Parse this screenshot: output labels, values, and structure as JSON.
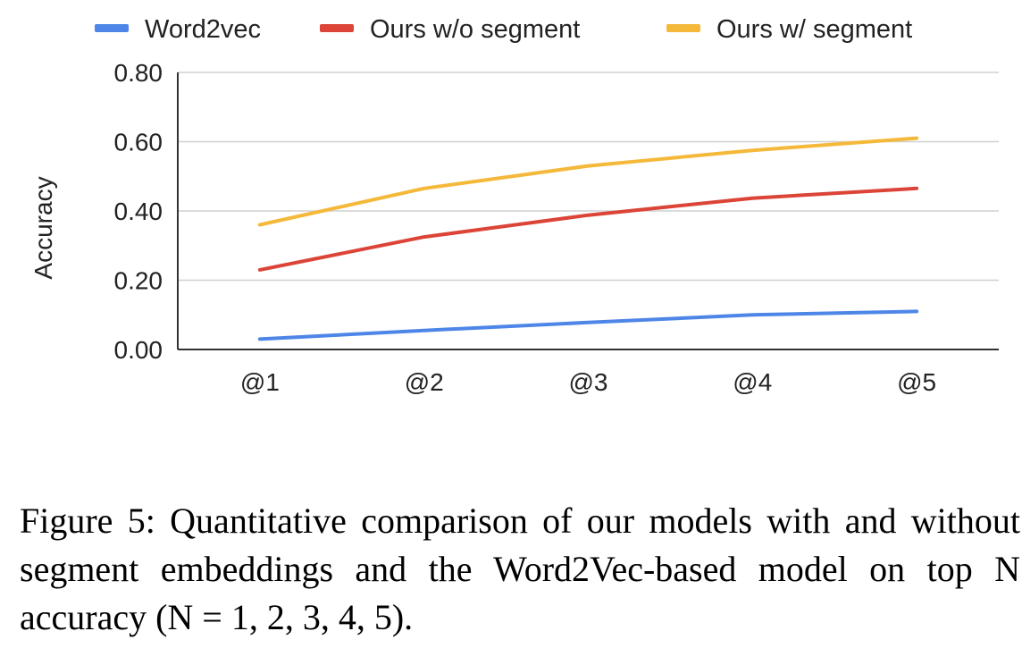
{
  "chart_data": {
    "type": "line",
    "categories": [
      "@1",
      "@2",
      "@3",
      "@4",
      "@5"
    ],
    "series": [
      {
        "name": "Word2vec",
        "color": "#4e86e8",
        "values": [
          0.03,
          0.055,
          0.078,
          0.1,
          0.11
        ]
      },
      {
        "name": "Ours w/o segment",
        "color": "#db4437",
        "values": [
          0.23,
          0.325,
          0.388,
          0.437,
          0.465
        ]
      },
      {
        "name": "Ours w/ segment",
        "color": "#f4b93a",
        "values": [
          0.36,
          0.465,
          0.53,
          0.575,
          0.61
        ]
      }
    ],
    "ylabel": "Accuracy",
    "ylim": [
      0,
      0.8
    ],
    "yticks": [
      "0.00",
      "0.20",
      "0.40",
      "0.60",
      "0.80"
    ],
    "ytick_values": [
      0,
      0.2,
      0.4,
      0.6,
      0.8
    ],
    "grid": true,
    "legend_position": "top"
  },
  "caption": "Figure 5: Quantitative comparison of our models with and without segment embeddings and the Word2Vec-based model on top N accuracy (N = 1, 2, 3, 4, 5)."
}
